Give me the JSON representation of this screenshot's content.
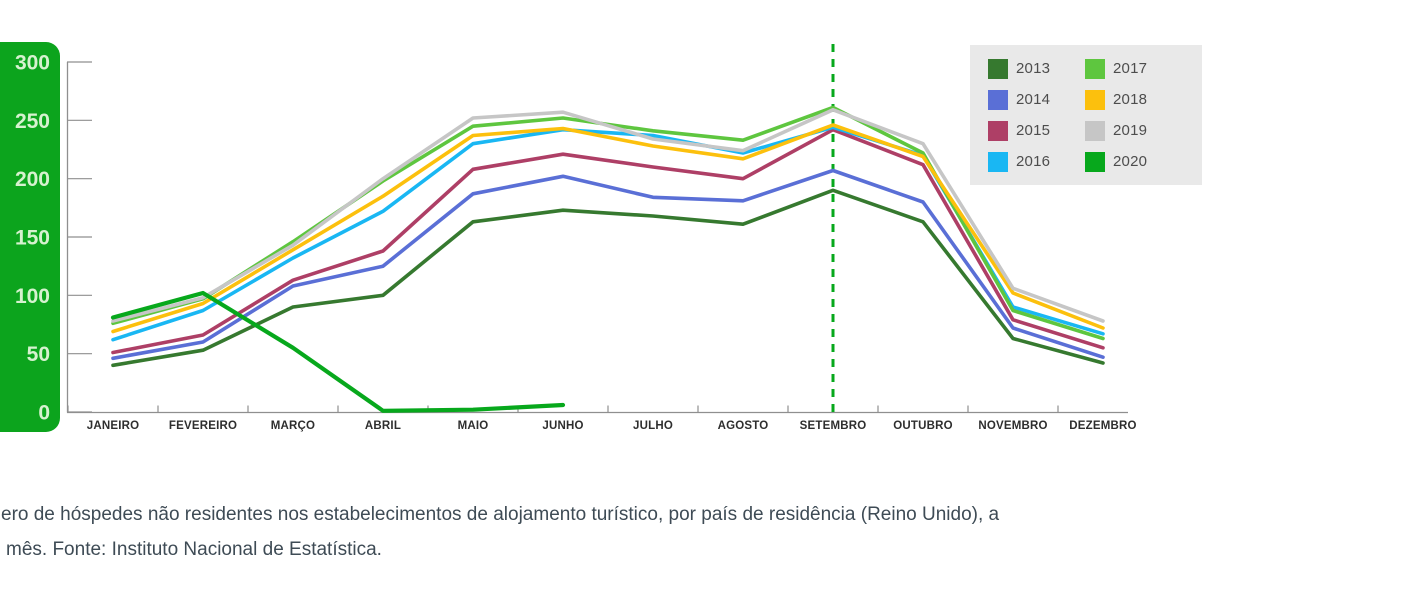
{
  "figure": {
    "caption_line1": "ero de hóspedes não residentes nos estabelecimentos de alojamento turístico, por país de residência (Reino Unido), a",
    "caption_line2": "mês. Fonte: Instituto Nacional de Estatística."
  },
  "colors": {
    "axis_panel_green": "#0ca41d",
    "axis_tick_text": "#d6f2cf",
    "axis_line_gray": "#8f8f8f",
    "month_label": "#2e2e2e",
    "legend_bg": "#e9e9e9",
    "legend_label": "#4d4d4d",
    "reference_line_green": "#07a81c",
    "caption_text": "#3e4b55"
  },
  "chart_data": {
    "type": "line",
    "title": "",
    "xlabel": "",
    "ylabel": "",
    "ylim": [
      0,
      300
    ],
    "y_ticks": [
      0,
      50,
      100,
      150,
      200,
      250,
      300
    ],
    "grid": false,
    "legend_position": "top-right",
    "categories": [
      "JANEIRO",
      "FEVEREIRO",
      "MARÇO",
      "ABRIL",
      "MAIO",
      "JUNHO",
      "JULHO",
      "AGOSTO",
      "SETEMBRO",
      "OUTUBRO",
      "NOVEMBRO",
      "DEZEMBRO"
    ],
    "series": [
      {
        "name": "2013",
        "color": "#36792f",
        "values": [
          40,
          53,
          90,
          100,
          163,
          173,
          168,
          161,
          190,
          163,
          63,
          42
        ]
      },
      {
        "name": "2014",
        "color": "#5a6fd6",
        "values": [
          46,
          60,
          108,
          125,
          187,
          202,
          184,
          181,
          207,
          180,
          72,
          47
        ]
      },
      {
        "name": "2015",
        "color": "#ae3f66",
        "values": [
          51,
          66,
          113,
          138,
          208,
          221,
          210,
          200,
          242,
          212,
          79,
          55
        ]
      },
      {
        "name": "2016",
        "color": "#19b7f3",
        "values": [
          62,
          87,
          132,
          172,
          230,
          242,
          237,
          222,
          244,
          220,
          90,
          67
        ]
      },
      {
        "name": "2017",
        "color": "#5ec63f",
        "values": [
          76,
          97,
          146,
          198,
          245,
          252,
          241,
          233,
          261,
          222,
          87,
          63
        ]
      },
      {
        "name": "2018",
        "color": "#fcc00d",
        "values": [
          69,
          93,
          139,
          185,
          237,
          243,
          228,
          217,
          246,
          219,
          102,
          72
        ]
      },
      {
        "name": "2019",
        "color": "#c6c6c6",
        "values": [
          78,
          98,
          143,
          200,
          252,
          257,
          234,
          224,
          259,
          230,
          106,
          78
        ]
      },
      {
        "name": "2020",
        "color": "#07a81c",
        "values": [
          81,
          102,
          55,
          1,
          2,
          6,
          null,
          null,
          null,
          null,
          null,
          null
        ]
      }
    ],
    "annotations": [
      {
        "type": "vline",
        "at": "SETEMBRO",
        "style": "dashed",
        "color": "#07a81c"
      }
    ]
  }
}
